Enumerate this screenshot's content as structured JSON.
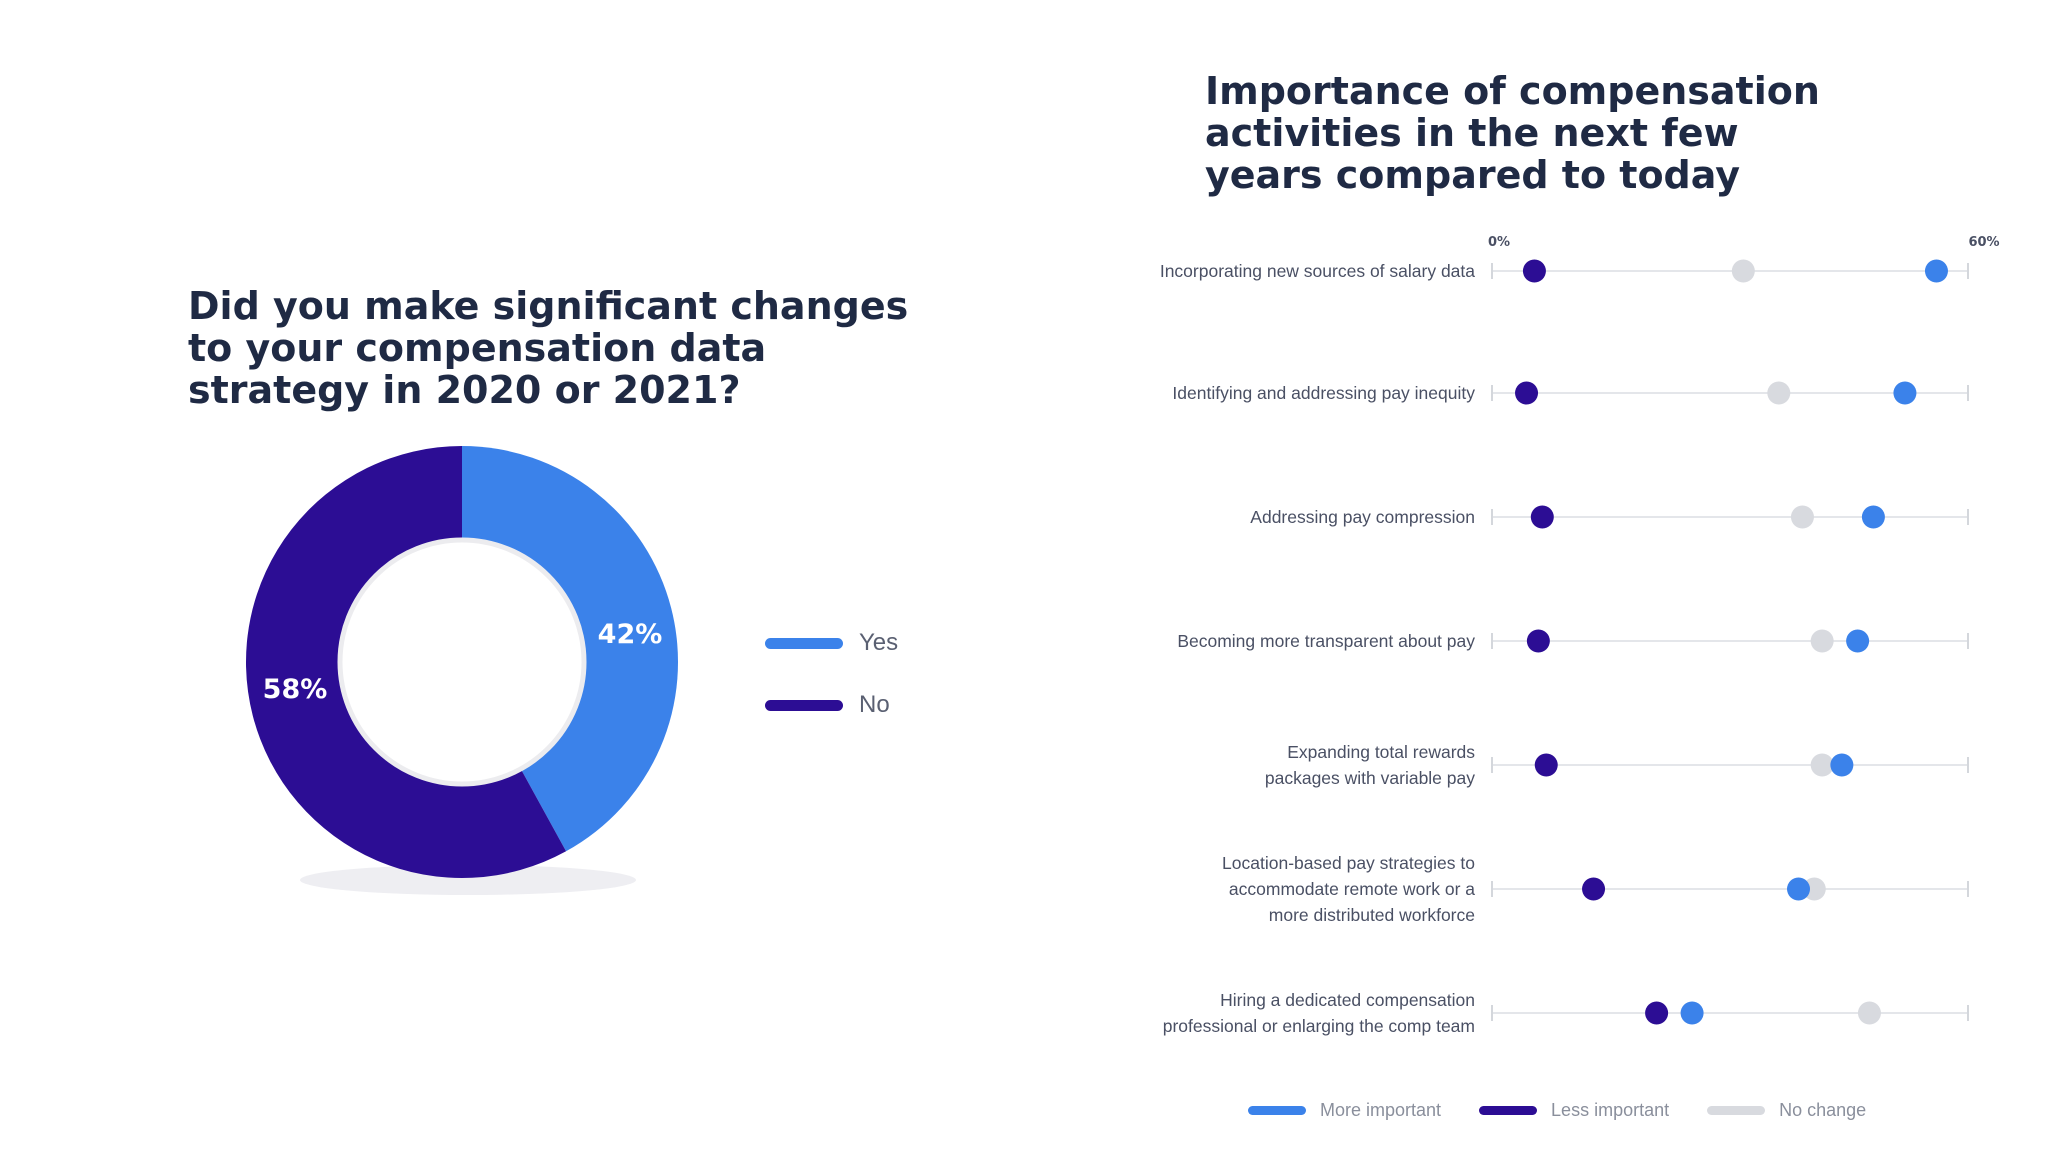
{
  "colors": {
    "more_important": "#3b82ea",
    "less_important": "#2c0d94",
    "no_change": "#d8dadf",
    "title": "#1f2a44"
  },
  "chart_data": [
    {
      "type": "pie",
      "title": "Did you make significant changes to your compensation data strategy in 2020 or 2021?",
      "slices": [
        {
          "label": "Yes",
          "value": 42,
          "display": "42%",
          "color": "#3b82ea"
        },
        {
          "label": "No",
          "value": 58,
          "display": "58%",
          "color": "#2c0d94"
        }
      ],
      "legend": {
        "position": "right",
        "items": [
          "Yes",
          "No"
        ]
      }
    },
    {
      "type": "scatter",
      "title": "Importance of compensation activities in the next few years compared to today",
      "xlim": [
        0,
        60
      ],
      "x_ticks": [
        "0%",
        "60%"
      ],
      "categories": [
        [
          "Incorporating new sources of salary data"
        ],
        [
          "Identifying and addressing pay inequity"
        ],
        [
          "Addressing pay compression"
        ],
        [
          "Becoming more transparent about pay"
        ],
        [
          "Expanding total rewards",
          "packages with variable pay"
        ],
        [
          "Location-based pay strategies to",
          "accommodate remote work or a",
          "more distributed workforce"
        ],
        [
          "Hiring a dedicated compensation",
          "professional or enlarging the comp team"
        ]
      ],
      "series": [
        {
          "name": "More important",
          "color": "#3b82ea",
          "values": [
            56,
            52,
            48,
            46,
            44,
            38.5,
            25
          ]
        },
        {
          "name": "Less important",
          "color": "#2c0d94",
          "values": [
            5,
            4,
            6,
            5.5,
            6.5,
            12.5,
            20.5
          ]
        },
        {
          "name": "No change",
          "color": "#d8dadf",
          "values": [
            31.5,
            36,
            39,
            41.5,
            41.5,
            40.5,
            47.5
          ]
        }
      ],
      "legend": {
        "position": "bottom"
      },
      "grid": false
    }
  ]
}
